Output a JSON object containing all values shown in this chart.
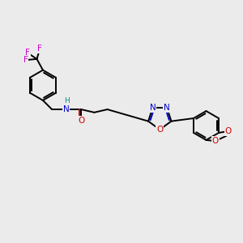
{
  "bg": "#ebebeb",
  "C": "#000000",
  "N": "#0000cc",
  "O": "#cc0000",
  "F": "#cc00cc",
  "H_col": "#008888",
  "lw": 1.4,
  "lw2": 1.0,
  "fs": 7.5,
  "fs_small": 6.5,
  "xlim": [
    0,
    12
  ],
  "ylim": [
    0,
    10
  ]
}
